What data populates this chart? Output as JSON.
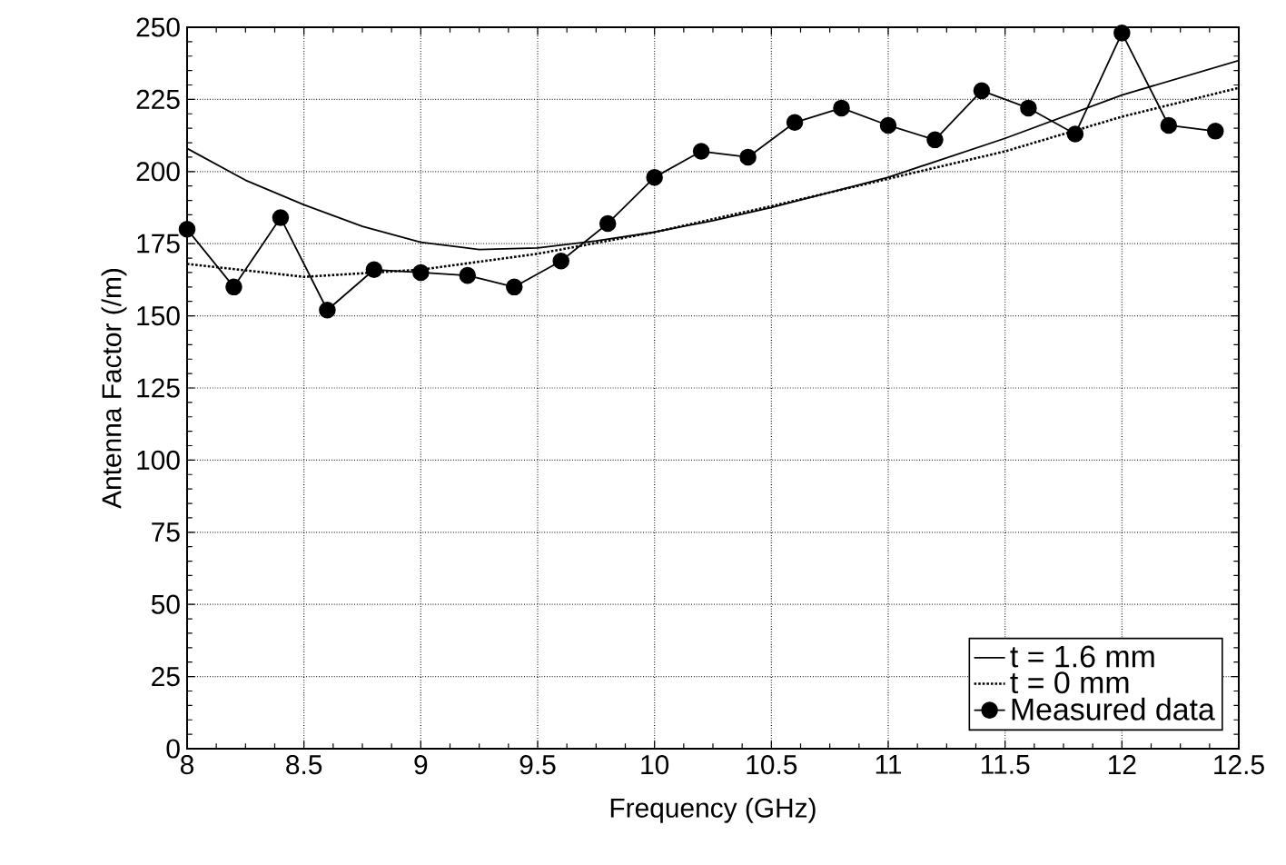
{
  "chart_data": {
    "type": "line",
    "xlabel": "Frequency (GHz)",
    "ylabel": "Antenna Factor (/m)",
    "xlim": [
      8,
      12.5
    ],
    "ylim": [
      0,
      250
    ],
    "xticks": [
      8,
      8.5,
      9,
      9.5,
      10,
      10.5,
      11,
      11.5,
      12,
      12.5
    ],
    "yticks": [
      0,
      25,
      50,
      75,
      100,
      125,
      150,
      175,
      200,
      225,
      250
    ],
    "grid": true,
    "legend": "bottom right",
    "series": [
      {
        "name": "t = 1.6 mm",
        "color": "#000000",
        "line_style": "solid",
        "marker": "none",
        "x": [
          8,
          8.25,
          8.5,
          8.75,
          9,
          9.25,
          9.5,
          9.75,
          10,
          10.25,
          10.5,
          11,
          11.5,
          12,
          12.5
        ],
        "values": [
          208,
          197,
          188.5,
          181,
          175.5,
          173,
          173.5,
          176,
          179,
          183,
          187.5,
          198,
          211.5,
          226.5,
          238.5
        ]
      },
      {
        "name": "t = 0 mm",
        "color": "#000000",
        "line_style": "dotted",
        "marker": "none",
        "x": [
          8,
          8.5,
          9,
          9.5,
          10,
          10.5,
          11,
          11.5,
          12,
          12.5
        ],
        "values": [
          168,
          163.5,
          166,
          171.5,
          179,
          188,
          197.5,
          207,
          219,
          229
        ]
      },
      {
        "name": "Measured data",
        "color": "#000000",
        "line_style": "solid",
        "marker": "circle",
        "x": [
          8,
          8.2,
          8.4,
          8.6,
          8.8,
          9,
          9.2,
          9.4,
          9.6,
          9.8,
          10,
          10.2,
          10.4,
          10.6,
          10.8,
          11,
          11.2,
          11.4,
          11.6,
          11.8,
          12,
          12.2,
          12.4
        ],
        "values": [
          180,
          160,
          184,
          152,
          166,
          165,
          164,
          160,
          169,
          182,
          198,
          207,
          205,
          217,
          222,
          216,
          211,
          228,
          222,
          213,
          248,
          216,
          214
        ]
      }
    ]
  }
}
